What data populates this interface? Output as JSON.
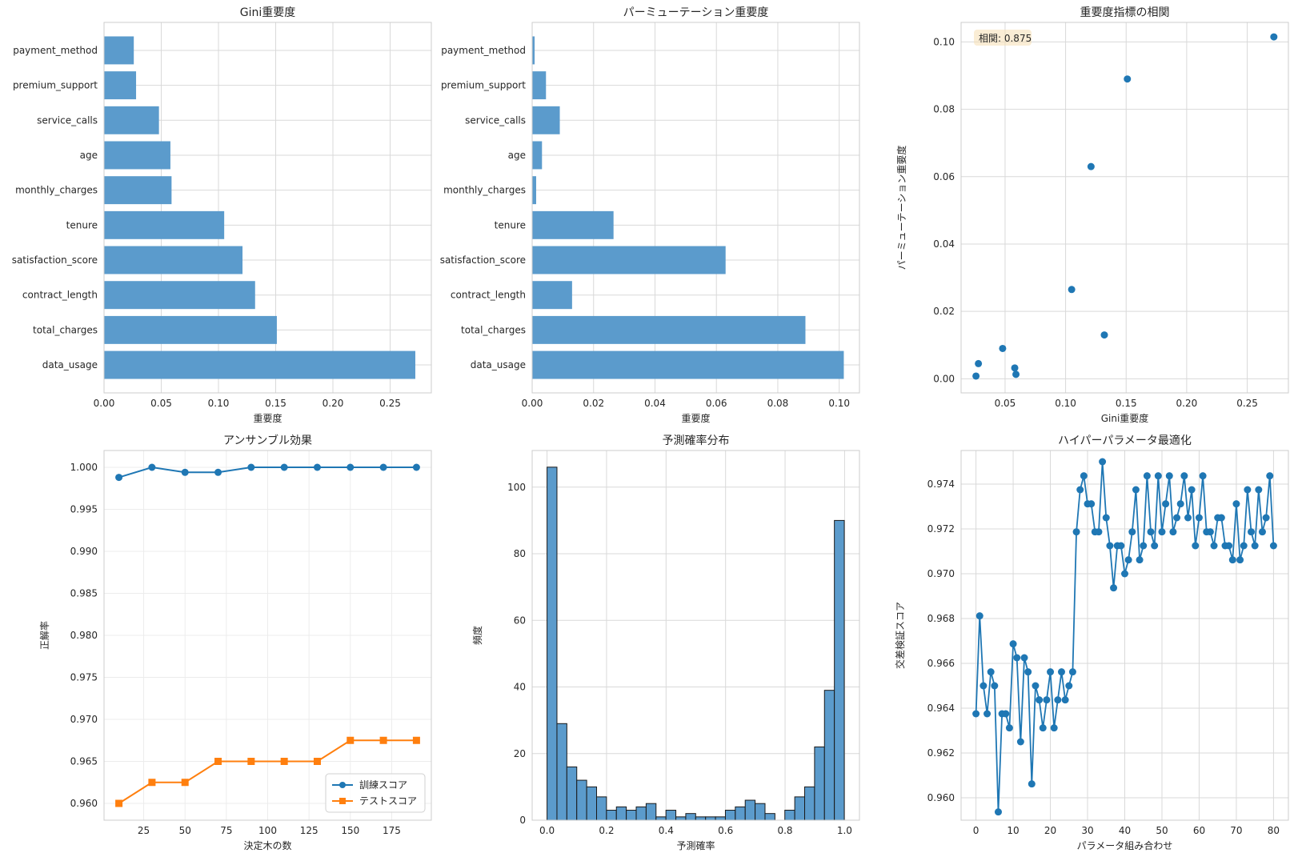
{
  "chart_data": [
    {
      "type": "bar",
      "orientation": "horizontal",
      "title": "Gini重要度",
      "xlabel": "重要度",
      "ylabel": "",
      "categories": [
        "data_usage",
        "total_charges",
        "contract_length",
        "satisfaction_score",
        "tenure",
        "monthly_charges",
        "age",
        "service_calls",
        "premium_support",
        "payment_method"
      ],
      "values": [
        0.272,
        0.151,
        0.132,
        0.121,
        0.105,
        0.059,
        0.058,
        0.048,
        0.028,
        0.026
      ],
      "xlim": [
        0,
        0.286
      ],
      "xticks": [
        "0.00",
        "0.05",
        "0.10",
        "0.15",
        "0.20",
        "0.25"
      ],
      "color": "#5b9bcc",
      "grid": true
    },
    {
      "type": "bar",
      "orientation": "horizontal",
      "title": "パーミューテーション重要度",
      "xlabel": "重要度",
      "ylabel": "",
      "categories": [
        "data_usage",
        "total_charges",
        "contract_length",
        "satisfaction_score",
        "tenure",
        "monthly_charges",
        "age",
        "service_calls",
        "premium_support",
        "payment_method"
      ],
      "values": [
        0.1015,
        0.089,
        0.013,
        0.063,
        0.0265,
        0.0013,
        0.0032,
        0.009,
        0.0045,
        0.0008
      ],
      "xlim": [
        0,
        0.1066
      ],
      "xticks": [
        "0.00",
        "0.02",
        "0.04",
        "0.06",
        "0.08",
        "0.10"
      ],
      "color": "#5b9bcc",
      "grid": true
    },
    {
      "type": "scatter",
      "title": "重要度指標の相関",
      "xlabel": "Gini重要度",
      "ylabel": "パーミューテーション重要度",
      "annotation": "相関: 0.875",
      "points": [
        [
          0.272,
          0.1015
        ],
        [
          0.151,
          0.089
        ],
        [
          0.132,
          0.013
        ],
        [
          0.121,
          0.063
        ],
        [
          0.105,
          0.0265
        ],
        [
          0.059,
          0.0013
        ],
        [
          0.058,
          0.0032
        ],
        [
          0.048,
          0.009
        ],
        [
          0.028,
          0.0045
        ],
        [
          0.026,
          0.0008
        ]
      ],
      "xlim": [
        0.0137,
        0.284
      ],
      "ylim": [
        -0.0042,
        0.1058
      ],
      "xticks": [
        "0.05",
        "0.10",
        "0.15",
        "0.20",
        "0.25"
      ],
      "yticks": [
        "0.00",
        "0.02",
        "0.04",
        "0.06",
        "0.08",
        "0.10"
      ],
      "color": "#1f77b4",
      "grid": true
    },
    {
      "type": "line",
      "title": "アンサンブル効果",
      "xlabel": "決定木の数",
      "ylabel": "正解率",
      "x": [
        10,
        30,
        50,
        70,
        90,
        110,
        130,
        150,
        170,
        190
      ],
      "series": [
        {
          "name": "訓練スコア",
          "values": [
            0.9988,
            1.0,
            0.9994,
            0.9994,
            1.0,
            1.0,
            1.0,
            1.0,
            1.0,
            1.0
          ],
          "color": "#1f77b4",
          "marker": "circle"
        },
        {
          "name": "テストスコア",
          "values": [
            0.96,
            0.9625,
            0.9625,
            0.965,
            0.965,
            0.965,
            0.965,
            0.9675,
            0.9675,
            0.9675
          ],
          "color": "#ff7f0e",
          "marker": "square"
        }
      ],
      "xlim": [
        1,
        199
      ],
      "ylim": [
        0.958,
        1.002
      ],
      "xticks": [
        "25",
        "50",
        "75",
        "100",
        "125",
        "150",
        "175"
      ],
      "yticks": [
        "0.960",
        "0.965",
        "0.970",
        "0.975",
        "0.980",
        "0.985",
        "0.990",
        "0.995",
        "1.000"
      ],
      "legend": "bottom-right",
      "grid": true
    },
    {
      "type": "bar",
      "subtype": "histogram",
      "title": "予測確率分布",
      "xlabel": "予測確率",
      "ylabel": "頻度",
      "bin_edges_start": 0.0,
      "bin_width": 0.0333,
      "values": [
        106,
        29,
        16,
        12,
        10,
        7,
        3,
        4,
        3,
        4,
        5,
        1,
        3,
        1,
        2,
        1,
        1,
        1,
        3,
        4,
        6,
        5,
        2,
        0,
        3,
        7,
        10,
        22,
        39,
        90
      ],
      "xlim": [
        -0.05,
        1.05
      ],
      "ylim": [
        0,
        111
      ],
      "xticks": [
        "0.0",
        "0.2",
        "0.4",
        "0.6",
        "0.8",
        "1.0"
      ],
      "yticks": [
        "0",
        "20",
        "40",
        "60",
        "80",
        "100"
      ],
      "color": "#5b9bcc",
      "grid": true
    },
    {
      "type": "line",
      "title": "ハイパーパラメータ最適化",
      "xlabel": "パラメータ組み合わせ",
      "ylabel": "交差検証スコア",
      "x_start": 0,
      "values": [
        0.96375,
        0.96812,
        0.965,
        0.96375,
        0.96562,
        0.965,
        0.95937,
        0.96375,
        0.96375,
        0.96312,
        0.96687,
        0.96625,
        0.9625,
        0.96625,
        0.96562,
        0.96062,
        0.965,
        0.96437,
        0.96312,
        0.96437,
        0.96562,
        0.96312,
        0.96437,
        0.96562,
        0.96437,
        0.965,
        0.96562,
        0.97187,
        0.97375,
        0.97437,
        0.97312,
        0.97312,
        0.97187,
        0.97187,
        0.975,
        0.9725,
        0.97125,
        0.96937,
        0.97125,
        0.97125,
        0.97,
        0.97062,
        0.97187,
        0.97375,
        0.97062,
        0.97125,
        0.97437,
        0.97187,
        0.97125,
        0.97437,
        0.97187,
        0.97312,
        0.97437,
        0.97187,
        0.9725,
        0.97312,
        0.97437,
        0.9725,
        0.97375,
        0.97125,
        0.9725,
        0.97437,
        0.97187,
        0.97187,
        0.97125,
        0.9725,
        0.9725,
        0.97125,
        0.97125,
        0.97062,
        0.97312,
        0.97062,
        0.97125,
        0.97375,
        0.97187,
        0.97125,
        0.97375,
        0.97187,
        0.9725,
        0.97437,
        0.97125
      ],
      "xlim": [
        -4,
        84
      ],
      "ylim": [
        0.959,
        0.9755
      ],
      "xticks": [
        "0",
        "10",
        "20",
        "30",
        "40",
        "50",
        "60",
        "70",
        "80"
      ],
      "yticks": [
        "0.960",
        "0.962",
        "0.964",
        "0.966",
        "0.968",
        "0.970",
        "0.972",
        "0.974"
      ],
      "color": "#1f77b4",
      "grid": true
    }
  ],
  "style": {
    "grid_color": "#d9d9d9",
    "axis_color": "#cccccc"
  }
}
